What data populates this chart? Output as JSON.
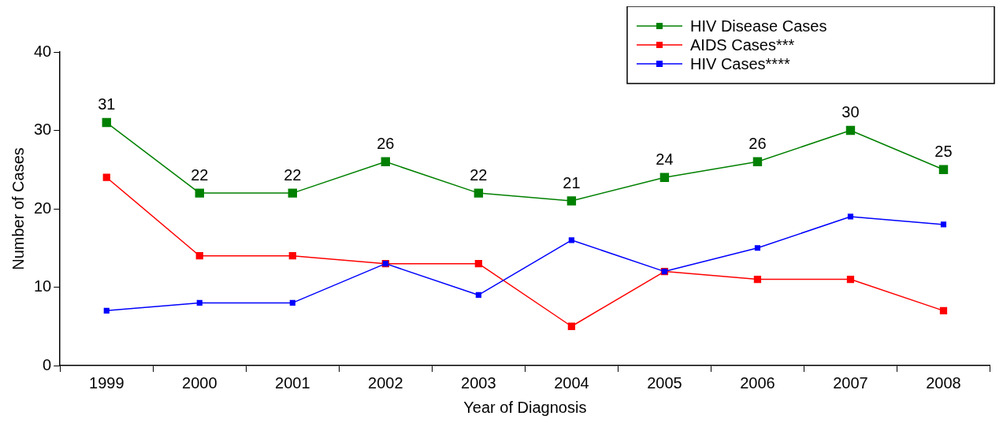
{
  "chart_data": {
    "type": "line",
    "xlabel": "Year of Diagnosis",
    "ylabel": "Number of Cases",
    "categories": [
      "1999",
      "2000",
      "2001",
      "2002",
      "2003",
      "2004",
      "2005",
      "2006",
      "2007",
      "2008"
    ],
    "series": [
      {
        "name": "HIV Disease Cases",
        "color": "#008000",
        "values": [
          31,
          22,
          22,
          26,
          22,
          21,
          24,
          26,
          30,
          25
        ],
        "value_labels": [
          "31",
          "22",
          "22",
          "26",
          "22",
          "21",
          "24",
          "26",
          "30",
          "25"
        ]
      },
      {
        "name": "AIDS Cases***",
        "color": "#ff0000",
        "values": [
          24,
          14,
          14,
          13,
          13,
          5,
          12,
          11,
          11,
          7
        ]
      },
      {
        "name": "HIV Cases****",
        "color": "#0000ff",
        "values": [
          7,
          8,
          8,
          13,
          9,
          16,
          12,
          15,
          19,
          18
        ]
      }
    ],
    "ylim": [
      0,
      40
    ],
    "yticks": [
      0,
      10,
      20,
      30,
      40
    ],
    "grid": false,
    "legend": "top right",
    "marker": "square",
    "line_style": "solid"
  }
}
